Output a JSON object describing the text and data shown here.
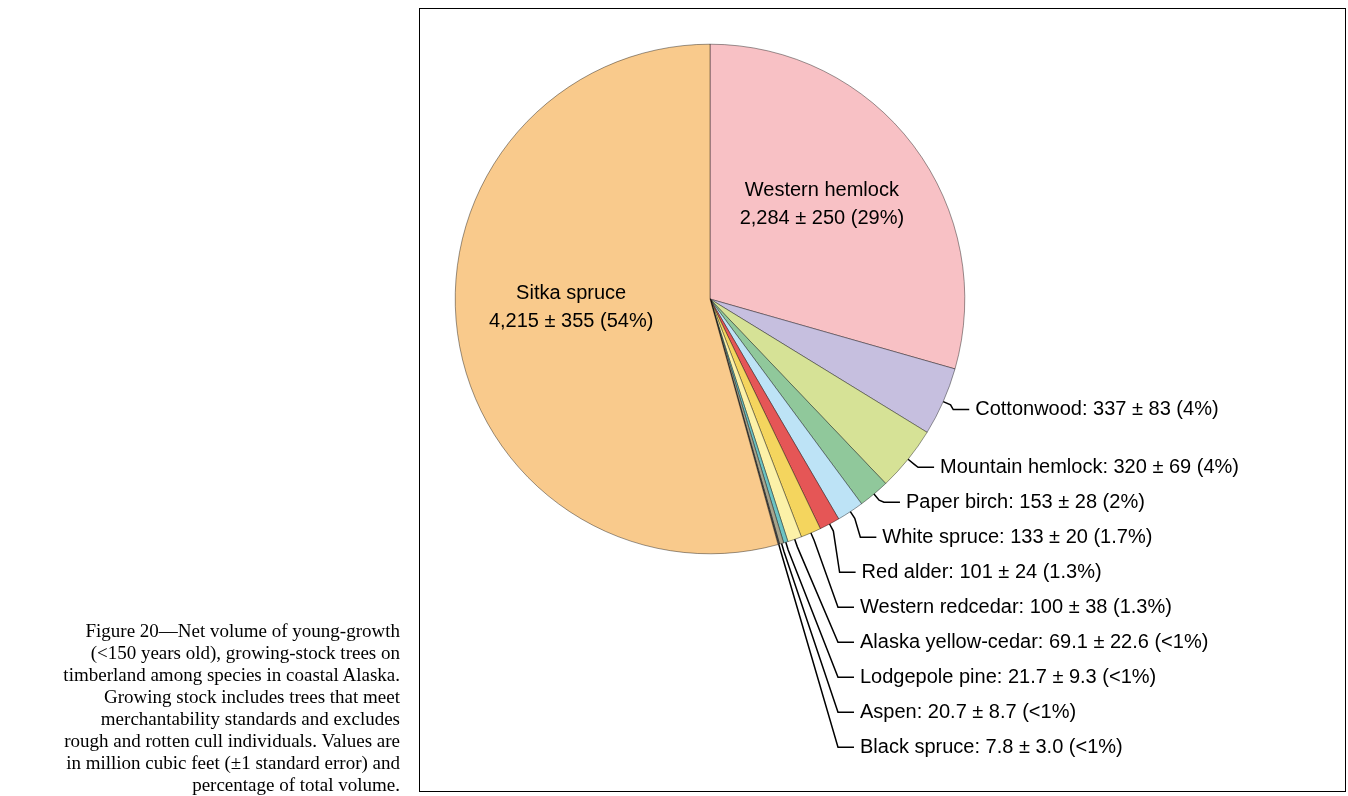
{
  "chart_data": {
    "type": "pie",
    "categories": [
      "Western hemlock",
      "Cottonwood",
      "Mountain hemlock",
      "Paper birch",
      "White spruce",
      "Red alder",
      "Western redcedar",
      "Alaska yellow-cedar",
      "Lodgepole pine",
      "Aspen",
      "Black spruce",
      "Sitka spruce"
    ],
    "values": [
      2284,
      337,
      320,
      153,
      133,
      101,
      100,
      69.1,
      21.7,
      20.7,
      7.8,
      4215
    ],
    "value_labels": [
      "2,284 ± 250 (29%)",
      "337 ± 83 (4%)",
      "320 ± 69 (4%)",
      "153 ± 28 (2%)",
      "133 ± 20 (1.7%)",
      "101 ± 24 (1.3%)",
      "100 ± 38 (1.3%)",
      "69.1 ± 22.6 (<1%)",
      "21.7 ± 9.3 (<1%)",
      "20.7 ± 8.7 (<1%)",
      "7.8 ± 3.0 (<1%)",
      "4,215 ± 355 (54%)"
    ],
    "colors": [
      "#f8c1c5",
      "#c6bfdf",
      "#d6e296",
      "#90c89b",
      "#bde3f6",
      "#e55656",
      "#f4d55e",
      "#fcf1a8",
      "#6cc3c3",
      "#a8a48c",
      "#4a4a4a",
      "#f9ca8c"
    ],
    "annotations": [
      "Figure 20—Net volume of young-growth (<150 years old), growing-stock trees on timberland among species in coastal Alaska. Growing stock includes trees that meet merchantability standards and excludes rough and rotten cull individuals. Values are in million cubic feet (±1 standard error) and percentage of total volume."
    ],
    "legend": false
  }
}
